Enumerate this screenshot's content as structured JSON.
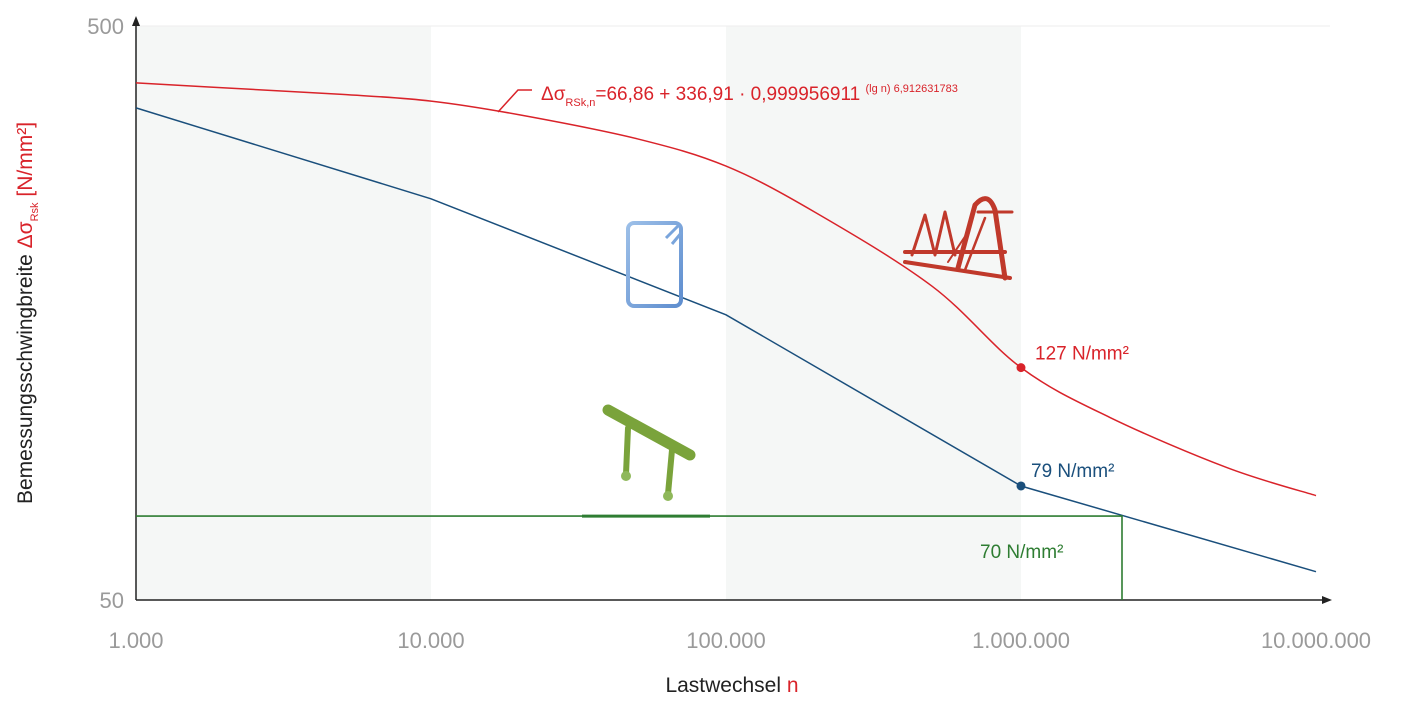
{
  "chart_data": {
    "type": "line",
    "x_scale": "log",
    "y_scale": "log",
    "xlabel": {
      "text": "Lastwechsel ",
      "symbol": "n"
    },
    "ylabel": {
      "text": "Bemessungsschwingbreite ",
      "symbol": "Δσ",
      "subscript": "Rsk",
      "unit": " [N/mm²]"
    },
    "xlim": [
      1000,
      10000000
    ],
    "ylim": [
      50,
      500
    ],
    "x_ticks": [
      {
        "value": 1000,
        "label": "1.000"
      },
      {
        "value": 10000,
        "label": "10.000"
      },
      {
        "value": 100000,
        "label": "100.000"
      },
      {
        "value": 1000000,
        "label": "1.000.000"
      },
      {
        "value": 10000000,
        "label": "10.000.000"
      }
    ],
    "y_ticks": [
      {
        "value": 500,
        "label": "500"
      },
      {
        "value": 50,
        "label": "50"
      }
    ],
    "bands": [
      {
        "from": 1000,
        "to": 10000
      },
      {
        "from": 100000,
        "to": 1000000
      }
    ],
    "series": [
      {
        "color": "#d9232a",
        "x": [
          1000,
          2000,
          5000,
          10000,
          20000,
          50000,
          100000,
          200000,
          500000,
          1000000,
          2000000,
          5000000,
          10000000
        ],
        "y": [
          398,
          390,
          380,
          370,
          350,
          318,
          285,
          237,
          176,
          127,
          104,
          85,
          76
        ]
      },
      {
        "color": "#1a4f7c",
        "x": [
          1000,
          10000,
          100000,
          1000000,
          10000000
        ],
        "y": [
          360,
          250,
          157,
          79,
          56
        ]
      },
      {
        "color": "#2e7d32",
        "x": [
          1000,
          2200000,
          2200000
        ],
        "y": [
          70,
          70,
          50
        ]
      }
    ],
    "points": [
      {
        "x": 1000000,
        "y": 127,
        "color": "#d9232a",
        "label": "127 N/mm²"
      },
      {
        "x": 1000000,
        "y": 79,
        "color": "#1a4f7c",
        "label": "79 N/mm²"
      }
    ],
    "annotations": [
      {
        "text": "70 N/mm²",
        "color": "#2e7d32"
      }
    ],
    "formula": {
      "main": "Δσ",
      "subscript": "RSk,n",
      "body": "=66,86 + 336,91 · 0,999956911 ",
      "superscript": "(lg n) 6,912631783"
    },
    "grid": false,
    "icons": [
      "truss-girder-icon",
      "reinforcement-stirrup-icon",
      "bent-bar-icon"
    ]
  }
}
